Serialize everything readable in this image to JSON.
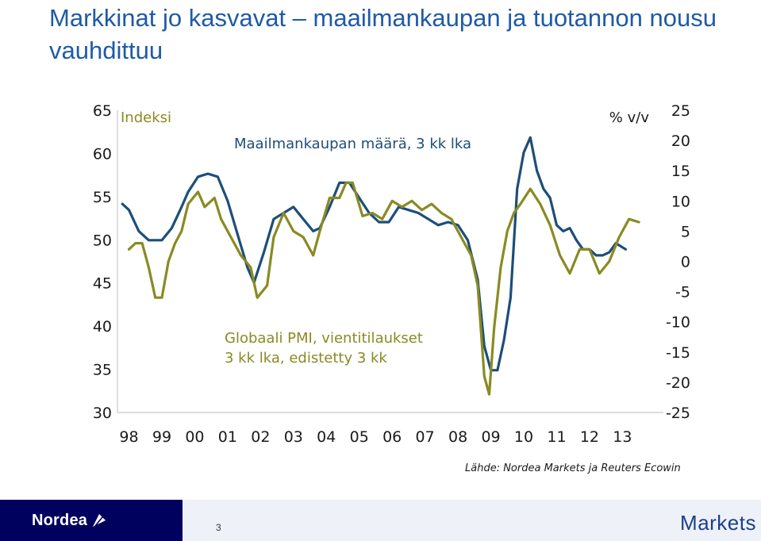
{
  "title": "Markkinat jo kasvavat – maailmankaupan ja tuotannon nousu vauhdittuu",
  "source": "Lähde: Nordea Markets ja Reuters Ecowin",
  "footer": {
    "brand": "Nordea",
    "page_number": "3",
    "markets": "Markets"
  },
  "colors": {
    "trade": "#1d4e79",
    "pmi": "#8a8a23",
    "title": "#1f5aa6"
  },
  "chart_data": {
    "type": "line",
    "left_axis": {
      "label": "Indeksi",
      "ylim": [
        30,
        65
      ],
      "ticks": [
        "65",
        "60",
        "55",
        "50",
        "45",
        "40",
        "35",
        "30"
      ]
    },
    "right_axis": {
      "label": "% v/v",
      "ylim": [
        -25,
        25
      ],
      "ticks": [
        "25",
        "20",
        "15",
        "10",
        "5",
        "0",
        "-5",
        "-10",
        "-15",
        "-20",
        "-25"
      ]
    },
    "x_ticks": [
      "98",
      "99",
      "00",
      "01",
      "02",
      "03",
      "04",
      "05",
      "06",
      "07",
      "08",
      "09",
      "10",
      "11",
      "12",
      "13"
    ],
    "series": [
      {
        "name": "Maailmankaupan määrä, 3 kk lka",
        "axis": "right",
        "x": [
          1998.0,
          1998.2,
          1998.5,
          1998.8,
          1999.0,
          1999.2,
          1999.5,
          1999.8,
          2000.0,
          2000.3,
          2000.6,
          2000.9,
          2001.2,
          2001.5,
          2001.8,
          2002.0,
          2002.3,
          2002.6,
          2002.9,
          2003.2,
          2003.5,
          2003.8,
          2004.0,
          2004.3,
          2004.6,
          2004.9,
          2005.2,
          2005.5,
          2005.8,
          2006.1,
          2006.4,
          2006.7,
          2007.0,
          2007.3,
          2007.6,
          2007.9,
          2008.2,
          2008.5,
          2008.8,
          2009.0,
          2009.2,
          2009.4,
          2009.6,
          2009.8,
          2010.0,
          2010.2,
          2010.4,
          2010.6,
          2010.8,
          2011.0,
          2011.2,
          2011.4,
          2011.6,
          2011.8,
          2012.0,
          2012.2,
          2012.4,
          2012.6,
          2012.8,
          2013.0,
          2013.3
        ],
        "values": [
          9.5,
          8.5,
          5,
          3.5,
          3.5,
          3.5,
          5.5,
          9,
          11.5,
          14,
          14.5,
          14,
          10,
          4.5,
          -1,
          -3.5,
          1.5,
          7,
          8,
          9,
          7,
          5,
          5.5,
          9,
          13,
          13,
          10.5,
          8,
          6.5,
          6.5,
          9,
          8.5,
          8,
          7,
          6,
          6.5,
          6,
          3.5,
          -3,
          -14,
          -18,
          -18,
          -13,
          -6,
          12,
          18,
          20.5,
          15,
          12,
          10.5,
          6,
          5,
          5.5,
          3.5,
          2,
          2,
          1,
          1,
          1.5,
          3,
          2
        ]
      },
      {
        "name": "Globaali PMI, vientitilaukset 3 kk lka, edistetty 3 kk",
        "axis": "right",
        "x": [
          1998.2,
          1998.4,
          1998.6,
          1998.8,
          1999.0,
          1999.2,
          1999.4,
          1999.6,
          1999.8,
          2000.0,
          2000.3,
          2000.5,
          2000.8,
          2001.0,
          2001.3,
          2001.6,
          2001.9,
          2002.1,
          2002.4,
          2002.6,
          2002.9,
          2003.2,
          2003.5,
          2003.8,
          2004.0,
          2004.3,
          2004.6,
          2004.8,
          2005.0,
          2005.3,
          2005.6,
          2005.9,
          2006.2,
          2006.5,
          2006.8,
          2007.1,
          2007.4,
          2007.7,
          2008.0,
          2008.3,
          2008.6,
          2008.8,
          2009.0,
          2009.15,
          2009.3,
          2009.5,
          2009.7,
          2009.9,
          2010.1,
          2010.4,
          2010.7,
          2011.0,
          2011.3,
          2011.6,
          2011.9,
          2012.2,
          2012.5,
          2012.8,
          2013.1,
          2013.4,
          2013.7
        ],
        "values": [
          2,
          3,
          3,
          -1,
          -6,
          -6,
          0,
          3,
          5,
          9.5,
          11.5,
          9,
          10.5,
          7,
          4,
          1,
          -1,
          -6,
          -4,
          4,
          8,
          5,
          4,
          1,
          5,
          10.5,
          10.5,
          13,
          13,
          7.5,
          8,
          7,
          10,
          9,
          10,
          8.5,
          9.5,
          8,
          7,
          4,
          1,
          -4,
          -19,
          -22,
          -11,
          -1,
          5,
          8,
          9.5,
          12,
          9.5,
          6,
          1,
          -2,
          2,
          2,
          -2,
          0,
          4,
          7,
          6.5
        ]
      }
    ],
    "annotations": [
      {
        "text": "Maailmankaupan määrä, 3 kk lka",
        "color": "trade"
      },
      {
        "text": "Globaali PMI, vientitilaukset",
        "color": "pmi"
      },
      {
        "text": "3 kk lka, edistetty 3 kk",
        "color": "pmi"
      }
    ]
  }
}
